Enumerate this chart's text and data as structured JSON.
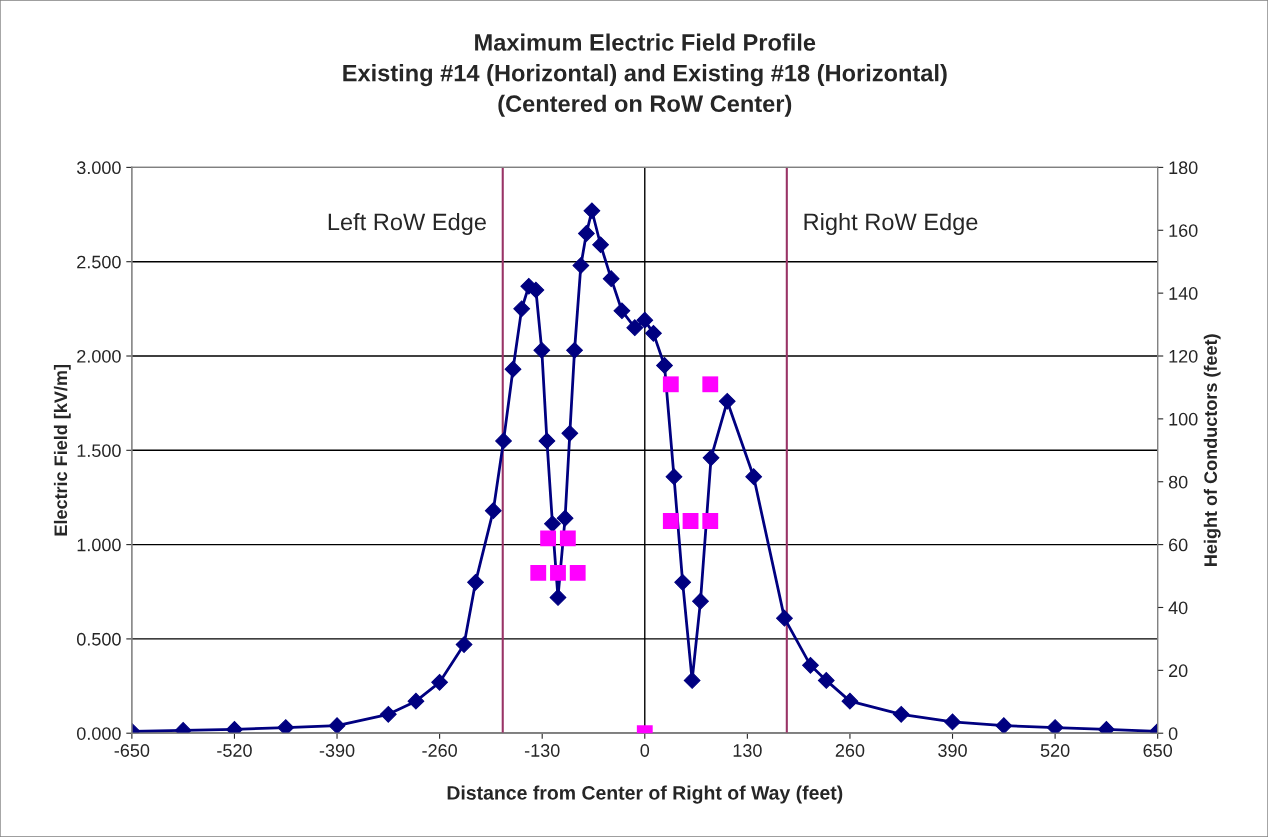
{
  "chart_data": {
    "type": "line",
    "title": "Maximum Electric Field Profile\nExisting #14 (Horizontal) and Existing #18 (Horizontal)\n(Centered on RoW Center)",
    "xlabel": "Distance from Center of Right of Way (feet)",
    "ylabel": "Electric Field [kV/m]",
    "y2label": "Height of Conductors (feet)",
    "series": [
      {
        "color": "#000080",
        "marker": "diamond",
        "line_style": "solid",
        "x": [
          -650,
          -585,
          -520,
          -455,
          -390,
          -325,
          -290,
          -260,
          -229,
          -214.5,
          -192,
          -179,
          -167,
          -156,
          -147,
          -138,
          -130.5,
          -124,
          -117,
          -110,
          -101,
          -95,
          -89,
          -81,
          -74,
          -67,
          -56,
          -42.6,
          -29,
          -12.7,
          0,
          11,
          25,
          37,
          48,
          60,
          70.6,
          84,
          104.5,
          138,
          177,
          210,
          230,
          260,
          325,
          390,
          455,
          520,
          585,
          650
        ],
        "values": [
          0.01,
          0.015,
          0.02,
          0.03,
          0.04,
          0.1,
          0.17,
          0.27,
          0.47,
          0.8,
          1.18,
          1.55,
          1.93,
          2.25,
          2.37,
          2.35,
          2.03,
          1.55,
          1.11,
          0.72,
          1.14,
          1.59,
          2.03,
          2.48,
          2.65,
          2.77,
          2.59,
          2.41,
          2.24,
          2.15,
          2.19,
          2.12,
          1.95,
          1.36,
          0.8,
          0.28,
          0.7,
          1.46,
          1.76,
          1.36,
          0.61,
          0.36,
          0.28,
          0.17,
          0.1,
          0.06,
          0.04,
          0.03,
          0.02,
          0.01
        ]
      },
      {
        "type": "scatter",
        "axis": "y2",
        "color": "#ff00ff",
        "marker": "square",
        "x": [
          0,
          -135,
          -110,
          -85,
          -122.5,
          -97.5,
          33,
          58,
          83,
          33,
          83
        ],
        "values": [
          0,
          51,
          51,
          51,
          62,
          62,
          67.5,
          67.5,
          67.5,
          111,
          111
        ]
      }
    ],
    "xlim": [
      -650,
      650
    ],
    "xticks": [
      -650,
      -520,
      -390,
      -260,
      -130,
      0,
      130,
      260,
      390,
      520,
      650
    ],
    "ylim": [
      0,
      3
    ],
    "yticks": [
      {
        "value": 0,
        "label": "0.000"
      },
      {
        "value": 0.5,
        "label": "0.500"
      },
      {
        "value": 1,
        "label": "1.000"
      },
      {
        "value": 1.5,
        "label": "1.500"
      },
      {
        "value": 2,
        "label": "2.000"
      },
      {
        "value": 2.5,
        "label": "2.500"
      },
      {
        "value": 3,
        "label": "3.000"
      }
    ],
    "y2lim": [
      0,
      180
    ],
    "y2ticks": [
      0,
      20,
      40,
      60,
      80,
      100,
      120,
      140,
      160,
      180
    ],
    "ref_lines": [
      {
        "axis": "x",
        "value": -180,
        "label": "Left RoW Edge",
        "color": "#993366"
      },
      {
        "axis": "x",
        "value": 180,
        "label": "Right RoW Edge",
        "color": "#993366"
      },
      {
        "axis": "x",
        "value": 0,
        "color": "#000000"
      }
    ],
    "grid": "y",
    "legend": false
  }
}
